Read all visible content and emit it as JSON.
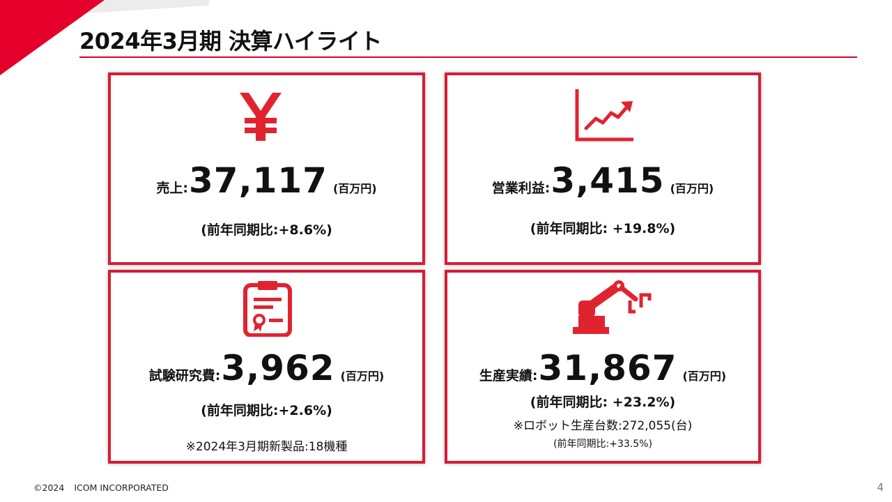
{
  "slide": {
    "title": "2024年3月期 決算ハイライト",
    "accent_color": "#d61c35"
  },
  "cards": {
    "sales": {
      "icon": "yen-icon",
      "label": "売上:",
      "value": "37,117",
      "unit": "(百万円)",
      "yoy": "(前年同期比:+8.6%)"
    },
    "operating_profit": {
      "icon": "rising-chart-icon",
      "label": "営業利益:",
      "value": "3,415",
      "unit": "(百万円)",
      "yoy": "(前年同期比: +19.8%)"
    },
    "rnd": {
      "icon": "certificate-clipboard-icon",
      "label": "試験研究費:",
      "value": "3,962",
      "unit": "(百万円)",
      "yoy": "(前年同期比:+2.6%)",
      "note": "※2024年3月期新製品:18機種"
    },
    "production": {
      "icon": "robot-arm-icon",
      "label": "生産実績:",
      "value": "31,867",
      "unit": "(百万円)",
      "yoy": "(前年同期比: +23.2%)",
      "note": "※ロボット生産台数:272,055(台)",
      "subnote": "(前年同期比:+33.5%)"
    }
  },
  "footer": {
    "copyright": "©2024",
    "company": "ICOM INCORPORATED",
    "page_number": "4"
  }
}
